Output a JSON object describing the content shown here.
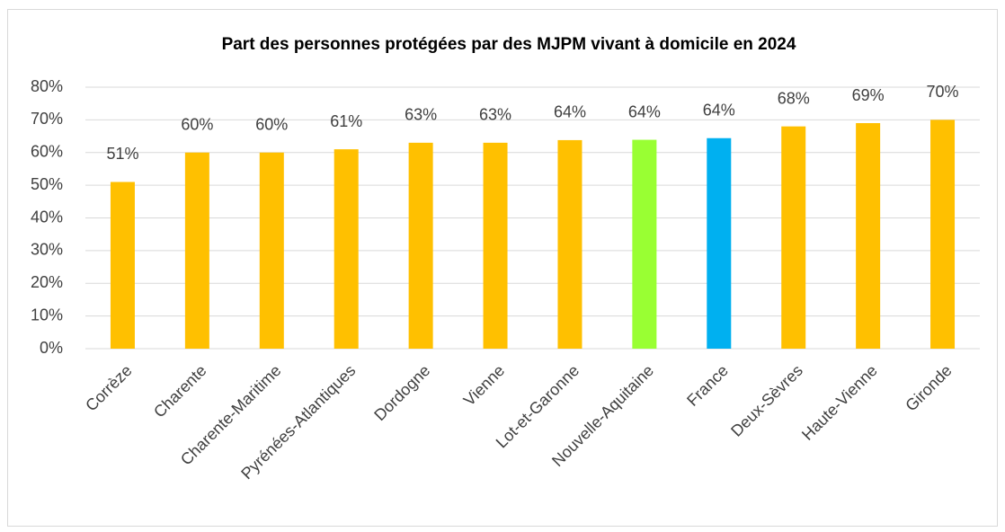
{
  "chart_data": {
    "type": "bar",
    "title": "Part des personnes protégées par des MJPM vivant à domicile en 2024",
    "categories": [
      "Corrèze",
      "Charente",
      "Charente-Maritime",
      "Pyrénées-Atlantiques",
      "Dordogne",
      "Vienne",
      "Lot-et-Garonne",
      "Nouvelle-Aquitaine",
      "France",
      "Deux-Sèvres",
      "Haute-Vienne",
      "Gironde"
    ],
    "values": [
      51,
      60,
      60,
      61,
      63,
      63,
      63.8,
      63.9,
      64.4,
      68,
      69,
      70
    ],
    "value_labels": [
      "51%",
      "60%",
      "60%",
      "61%",
      "63%",
      "63%",
      "64%",
      "64%",
      "64%",
      "68%",
      "69%",
      "70%"
    ],
    "colors": [
      "#ffc000",
      "#ffc000",
      "#ffc000",
      "#ffc000",
      "#ffc000",
      "#ffc000",
      "#ffc000",
      "#99ff33",
      "#00b0f0",
      "#ffc000",
      "#ffc000",
      "#ffc000"
    ],
    "ylim": [
      0,
      80
    ],
    "yticks": [
      {
        "value": 0,
        "label": "0%"
      },
      {
        "value": 10,
        "label": "10%"
      },
      {
        "value": 20,
        "label": "20%"
      },
      {
        "value": 30,
        "label": "30%"
      },
      {
        "value": 40,
        "label": "40%"
      },
      {
        "value": 50,
        "label": "50%"
      },
      {
        "value": 60,
        "label": "60%"
      },
      {
        "value": 70,
        "label": "70%"
      },
      {
        "value": 80,
        "label": "80%"
      }
    ],
    "grid": true
  }
}
